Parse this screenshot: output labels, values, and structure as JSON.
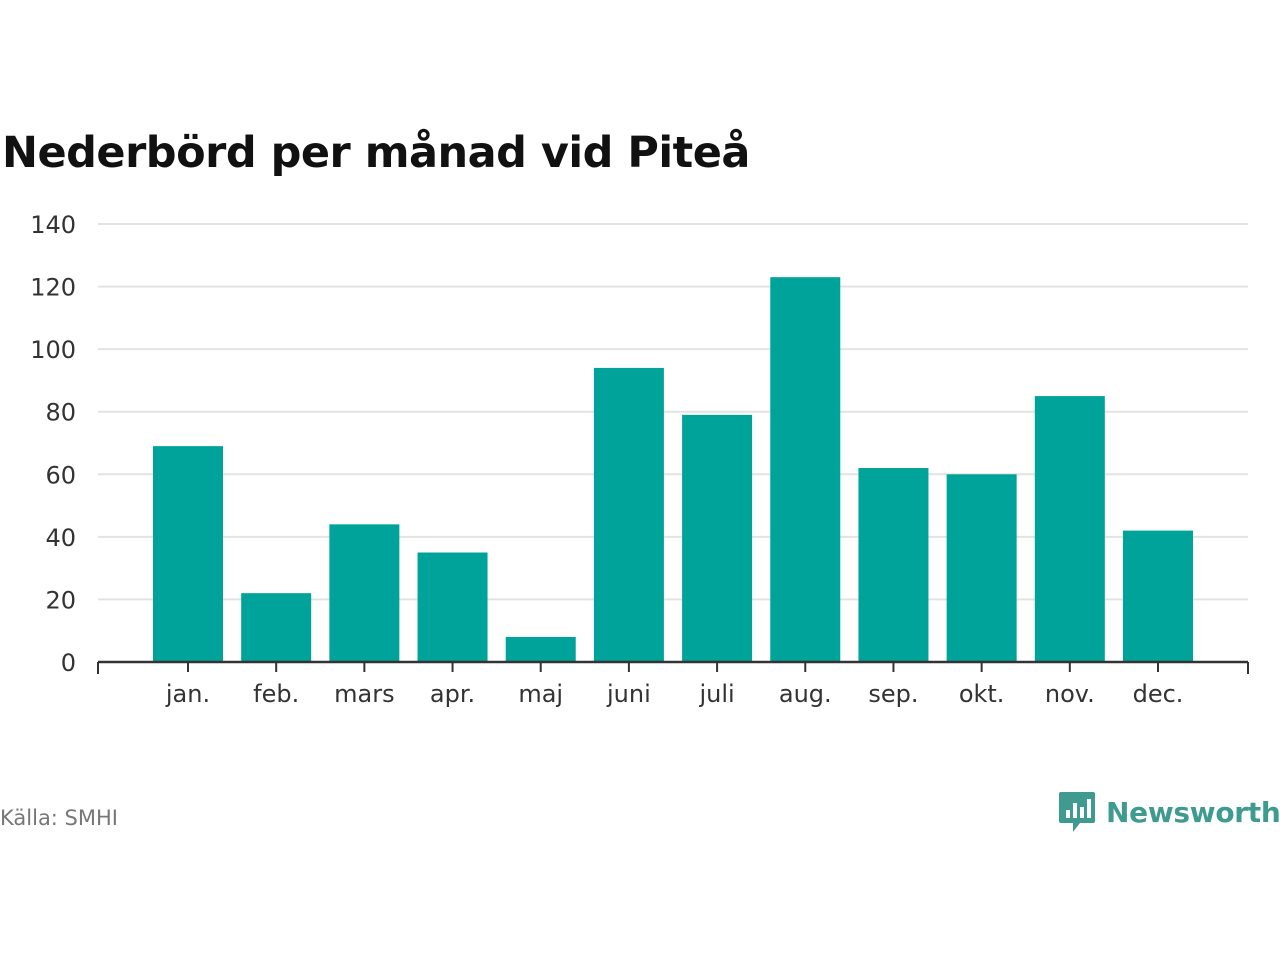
{
  "chart_data": {
    "type": "bar",
    "title": "Nederbörd per månad vid Piteå",
    "categories": [
      "jan.",
      "feb.",
      "mars",
      "apr.",
      "maj",
      "juni",
      "juli",
      "aug.",
      "sep.",
      "okt.",
      "nov.",
      "dec."
    ],
    "values": [
      69,
      22,
      44,
      35,
      8,
      94,
      79,
      123,
      62,
      60,
      85,
      42
    ],
    "ylim": [
      0,
      140
    ],
    "yticks": [
      0,
      20,
      40,
      60,
      80,
      100,
      120,
      140
    ],
    "xlabel": "",
    "ylabel": "",
    "grid": true,
    "bar_color": "#00a39a",
    "grid_color": "#e3e3e3",
    "axis_color": "#333333"
  },
  "footer": {
    "source": "Källa: SMHI",
    "brand": "Newsworthy",
    "brand_icon": "bar-chart-speech-bubble-icon",
    "brand_color": "#3f9b8f"
  }
}
